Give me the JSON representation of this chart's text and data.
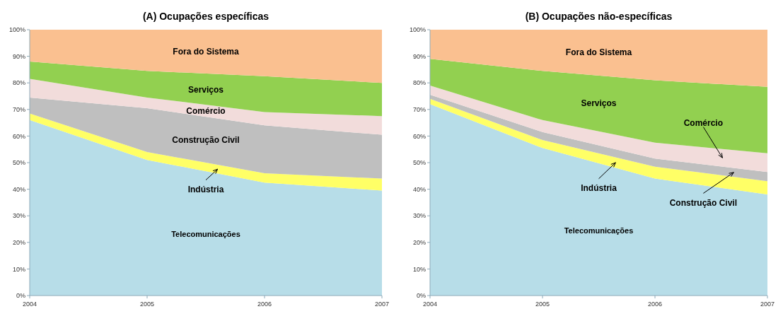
{
  "chart_data": [
    {
      "type": "area",
      "stacked": true,
      "title": "(A) Ocupações específicas",
      "x": [
        2004,
        2005,
        2006,
        2007
      ],
      "xlim": [
        2004,
        2007
      ],
      "xticks": [
        2004,
        2005,
        2006,
        2007
      ],
      "ylim": [
        0,
        100
      ],
      "yticks": [
        {
          "value": 0,
          "label": "0%"
        },
        {
          "value": 10,
          "label": "10%"
        },
        {
          "value": 20,
          "label": "20%"
        },
        {
          "value": 30,
          "label": "30%"
        },
        {
          "value": 40,
          "label": "40%"
        },
        {
          "value": 50,
          "label": "50%"
        },
        {
          "value": 60,
          "label": "60%"
        },
        {
          "value": 70,
          "label": "70%"
        },
        {
          "value": 80,
          "label": "80%"
        },
        {
          "value": 90,
          "label": "90%"
        },
        {
          "value": 100,
          "label": "100%"
        }
      ],
      "grid": false,
      "series": [
        {
          "name": "Telecomunicações",
          "color": "#b7dde8",
          "values": [
            66,
            51,
            42.5,
            39.5
          ]
        },
        {
          "name": "Indústria",
          "color": "#ffff66",
          "values": [
            2.5,
            3,
            3.5,
            4.5
          ]
        },
        {
          "name": "Construção Civil",
          "color": "#bfbfbf",
          "values": [
            6,
            16.5,
            18,
            16.5
          ]
        },
        {
          "name": "Comércio",
          "color": "#f2dcdb",
          "values": [
            7,
            4,
            5,
            7
          ]
        },
        {
          "name": "Serviços",
          "color": "#92d050",
          "values": [
            6.5,
            10,
            13.5,
            12.5
          ]
        },
        {
          "name": "Fora do Sistema",
          "color": "#fac090",
          "values": [
            12,
            15.5,
            17.5,
            20
          ]
        }
      ]
    },
    {
      "type": "area",
      "stacked": true,
      "title": "(B) Ocupações não-específicas",
      "x": [
        2004,
        2005,
        2006,
        2007
      ],
      "xlim": [
        2004,
        2007
      ],
      "xticks": [
        2004,
        2005,
        2006,
        2007
      ],
      "ylim": [
        0,
        100
      ],
      "yticks": [
        {
          "value": 0,
          "label": "0%"
        },
        {
          "value": 10,
          "label": "10%"
        },
        {
          "value": 20,
          "label": "20%"
        },
        {
          "value": 30,
          "label": "30%"
        },
        {
          "value": 40,
          "label": "40%"
        },
        {
          "value": 50,
          "label": "50%"
        },
        {
          "value": 60,
          "label": "60%"
        },
        {
          "value": 70,
          "label": "70%"
        },
        {
          "value": 80,
          "label": "80%"
        },
        {
          "value": 90,
          "label": "90%"
        },
        {
          "value": 100,
          "label": "100%"
        }
      ],
      "grid": false,
      "series": [
        {
          "name": "Telecomunicações",
          "color": "#b7dde8",
          "values": [
            72,
            55.5,
            44,
            38
          ]
        },
        {
          "name": "Indústria",
          "color": "#ffff66",
          "values": [
            2,
            3,
            4.5,
            5
          ]
        },
        {
          "name": "Construção Civil",
          "color": "#bfbfbf",
          "values": [
            1.5,
            3,
            3,
            3.5
          ]
        },
        {
          "name": "Comércio",
          "color": "#f2dcdb",
          "values": [
            3.5,
            4.5,
            6,
            7
          ]
        },
        {
          "name": "Serviços",
          "color": "#92d050",
          "values": [
            10,
            18.5,
            23.5,
            25
          ]
        },
        {
          "name": "Fora do Sistema",
          "color": "#fac090",
          "values": [
            11,
            15.5,
            19,
            21.5
          ]
        }
      ]
    }
  ]
}
